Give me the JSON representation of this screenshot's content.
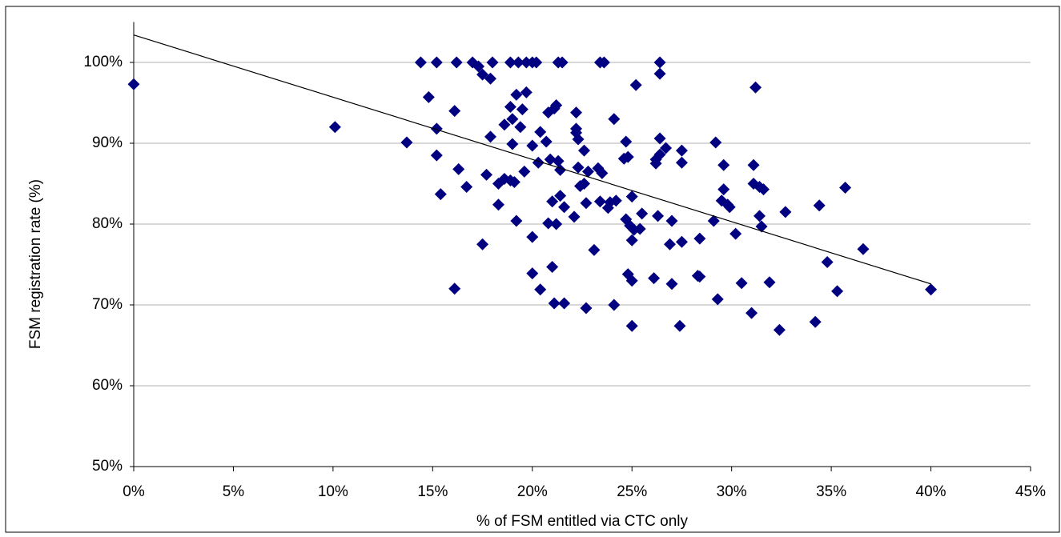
{
  "chart_data": {
    "type": "scatter",
    "x_label": "% of FSM entitled via CTC only",
    "y_label": "FSM registration rate (%)",
    "color": "#000080",
    "grid": true,
    "series": [
      {
        "x": [
          0,
          10.1,
          13.7,
          14.4,
          14.8,
          15.2,
          15.2,
          15.2,
          15.4,
          16.1,
          16.1,
          16.2,
          16.3,
          16.7,
          17,
          17.3,
          17.5,
          17.5,
          17.7,
          17.9,
          17.9,
          18,
          18.3,
          18.3,
          18.6,
          18.6,
          18.9,
          18.9,
          18.9,
          19,
          19,
          19.1,
          19.2,
          19.2,
          19.3,
          19.4,
          19.5,
          19.6,
          19.7,
          19.7,
          20,
          20,
          20,
          20,
          20.2,
          20.3,
          20.4,
          20.4,
          20.7,
          20.8,
          20.8,
          20.9,
          21,
          21,
          21.1,
          21.1,
          21.2,
          21.2,
          21.3,
          21.3,
          21.4,
          21.4,
          21.5,
          21.6,
          21.6,
          22.1,
          22.2,
          22.2,
          22.2,
          22.3,
          22.3,
          22.4,
          22.6,
          22.6,
          22.7,
          22.7,
          22.8,
          23.1,
          23.3,
          23.4,
          23.6,
          23.5,
          23.4,
          23.8,
          23.9,
          24.1,
          24.1,
          24.2,
          24.6,
          24.7,
          24.7,
          24.8,
          24.8,
          24.9,
          25,
          25,
          25,
          25,
          25.1,
          25.2,
          25.4,
          25.5,
          26.1,
          26.2,
          26.2,
          26.3,
          26.4,
          26.4,
          26.4,
          26.4,
          26.7,
          26.9,
          27,
          27,
          27.4,
          27.5,
          27.5,
          27.5,
          28.3,
          28.4,
          28.4,
          29.1,
          29.2,
          29.3,
          29.5,
          29.6,
          29.6,
          29.8,
          29.9,
          30.2,
          30.5,
          31,
          31.1,
          31.1,
          31.2,
          31.4,
          31.4,
          31.5,
          31.6,
          31.9,
          32.4,
          32.7,
          34.2,
          34.4,
          34.8,
          35.3,
          35.7,
          36.6,
          40
        ],
        "values": [
          97.3,
          92,
          90.1,
          100,
          95.7,
          100,
          91.8,
          88.5,
          83.7,
          94,
          72,
          100,
          86.8,
          84.6,
          100,
          99.5,
          98.5,
          77.5,
          86.1,
          98,
          90.8,
          100,
          85,
          82.4,
          92.3,
          85.6,
          100,
          94.5,
          85.4,
          93,
          89.9,
          85.2,
          96,
          80.4,
          100,
          92,
          94.2,
          86.5,
          100,
          96.3,
          100,
          89.7,
          78.4,
          73.9,
          100,
          87.6,
          71.9,
          91.4,
          90.2,
          80.1,
          93.8,
          88,
          74.7,
          82.8,
          70.2,
          94.3,
          94.7,
          80,
          87.8,
          100,
          83.5,
          86.7,
          100,
          82.1,
          70.2,
          80.9,
          93.8,
          91.8,
          91.3,
          90.5,
          87,
          84.7,
          85,
          89.1,
          82.6,
          69.6,
          86.5,
          76.8,
          86.9,
          100,
          100,
          86.3,
          82.8,
          82,
          82.7,
          70,
          93,
          82.9,
          88.1,
          90.2,
          80.6,
          88.3,
          73.8,
          79.8,
          73,
          83.4,
          78,
          67.4,
          79.3,
          97.2,
          79.4,
          81.3,
          73.3,
          87.5,
          88,
          81,
          100,
          98.6,
          90.6,
          88.6,
          89.4,
          77.5,
          80.4,
          72.6,
          67.4,
          87.6,
          89.1,
          77.8,
          73.6,
          78.2,
          73.5,
          80.4,
          90.1,
          70.7,
          82.9,
          84.3,
          87.3,
          82.4,
          82.1,
          78.8,
          72.7,
          69,
          87.3,
          85,
          96.9,
          84.6,
          81,
          79.7,
          84.3,
          72.8,
          66.9,
          81.5,
          67.9,
          82.3,
          75.3,
          71.7,
          84.5,
          76.9,
          71.9
        ]
      }
    ],
    "trendline": {
      "x": [
        0,
        40
      ],
      "y": [
        103.4,
        72.6
      ]
    },
    "xlim": [
      0,
      45
    ],
    "xticks": [
      {
        "value": 0,
        "label": "0%"
      },
      {
        "value": 5,
        "label": "5%"
      },
      {
        "value": 10,
        "label": "10%"
      },
      {
        "value": 15,
        "label": "15%"
      },
      {
        "value": 20,
        "label": "20%"
      },
      {
        "value": 25,
        "label": "25%"
      },
      {
        "value": 30,
        "label": "30%"
      },
      {
        "value": 35,
        "label": "35%"
      },
      {
        "value": 40,
        "label": "40%"
      },
      {
        "value": 45,
        "label": "45%"
      }
    ],
    "ylim": [
      50,
      105
    ],
    "yticks": [
      {
        "value": 50,
        "label": "50%"
      },
      {
        "value": 60,
        "label": "60%"
      },
      {
        "value": 70,
        "label": "70%"
      },
      {
        "value": 80,
        "label": "80%"
      },
      {
        "value": 90,
        "label": "90%"
      },
      {
        "value": 100,
        "label": "100%"
      }
    ]
  }
}
